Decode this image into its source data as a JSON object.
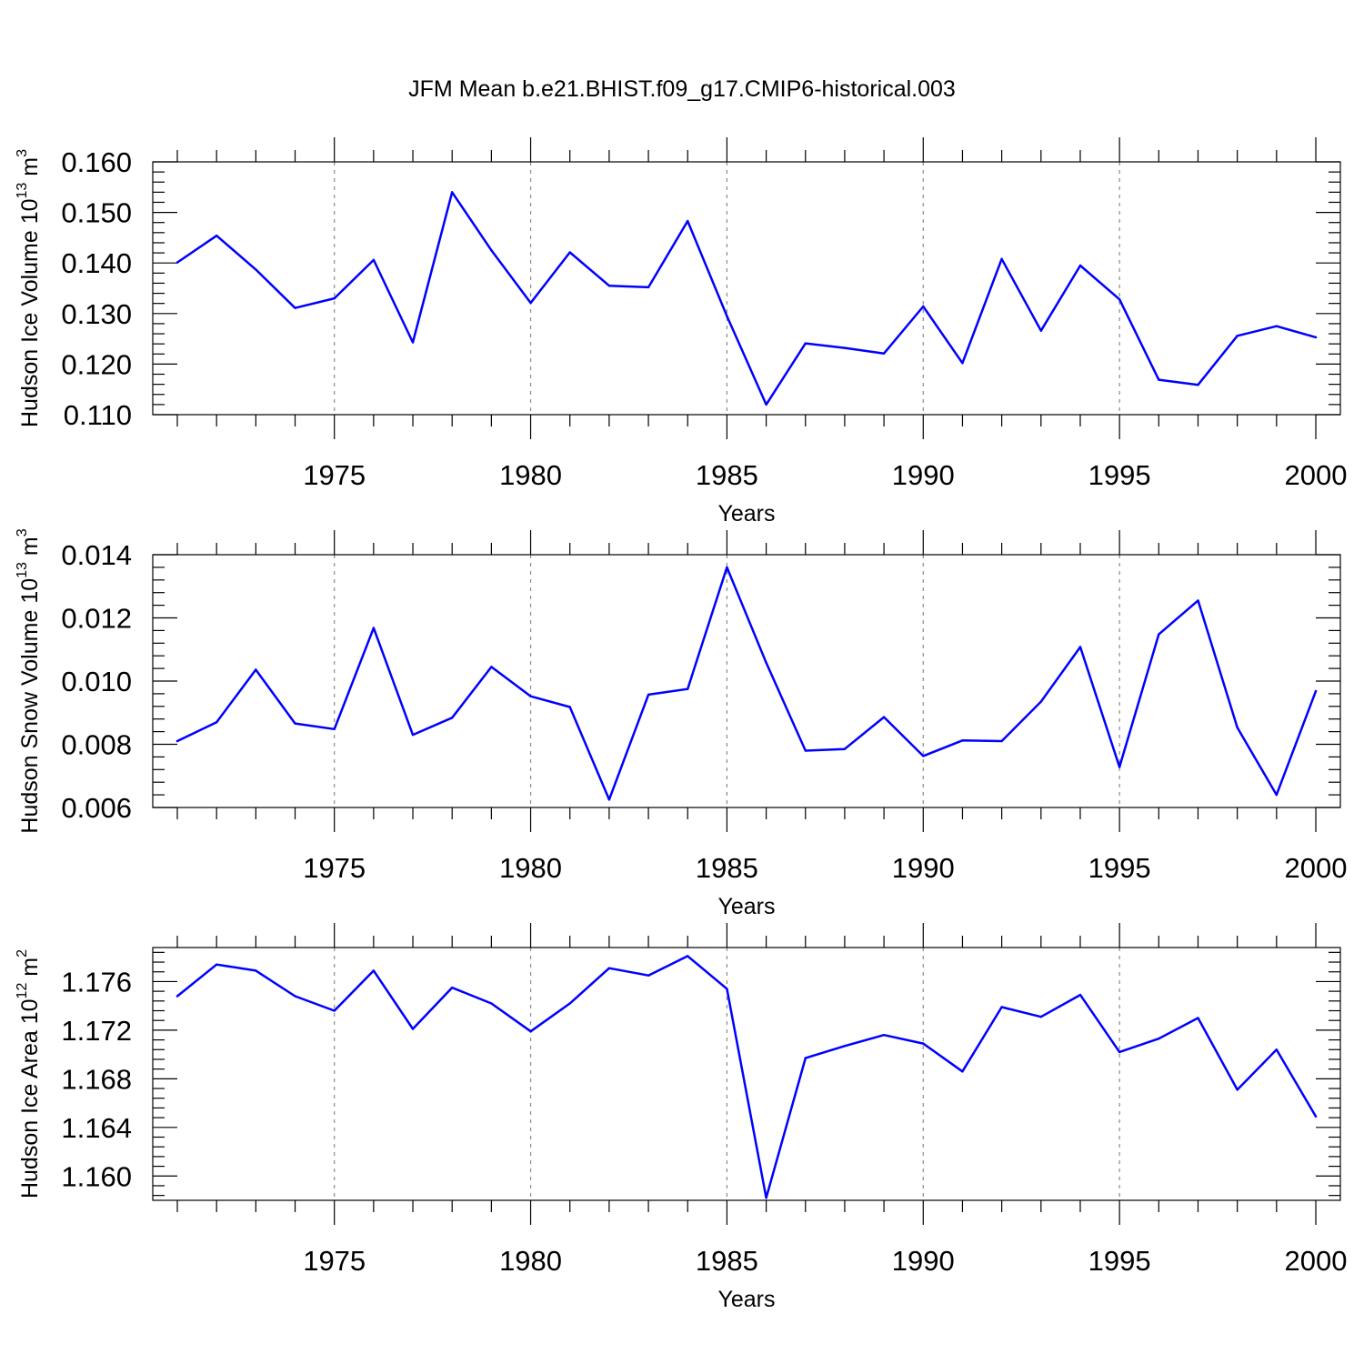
{
  "title": "JFM Mean b.e21.BHIST.f09_g17.CMIP6-historical.003",
  "line_color": "#0000ff",
  "chart_data": [
    {
      "type": "line",
      "xlabel": "Years",
      "ylabel_main": "Hudson Ice Volume 10",
      "ylabel_exp": "13",
      "ylabel_unit_main": " m",
      "ylabel_unit_exp": "3",
      "xlim": [
        1971,
        2000
      ],
      "ylim": [
        0.11,
        0.16
      ],
      "grid": "vertical dashed at major x ticks",
      "xticks": [
        1975,
        1980,
        1985,
        1990,
        1995,
        2000
      ],
      "yticks": [
        0.11,
        0.12,
        0.13,
        0.14,
        0.15,
        0.16
      ],
      "ytick_labels": [
        "0.110",
        "0.120",
        "0.130",
        "0.140",
        "0.150",
        "0.160"
      ],
      "x": [
        1971,
        1972,
        1973,
        1974,
        1975,
        1976,
        1977,
        1978,
        1979,
        1980,
        1981,
        1982,
        1983,
        1984,
        1985,
        1986,
        1987,
        1988,
        1989,
        1990,
        1991,
        1992,
        1993,
        1994,
        1995,
        1996,
        1997,
        1998,
        1999,
        2000
      ],
      "values": [
        0.1401,
        0.1454,
        0.1387,
        0.1311,
        0.133,
        0.1406,
        0.1243,
        0.154,
        0.1425,
        0.1321,
        0.1421,
        0.1355,
        0.1352,
        0.1483,
        0.1295,
        0.112,
        0.1241,
        0.1232,
        0.1221,
        0.1314,
        0.1202,
        0.1408,
        0.1266,
        0.1395,
        0.1328,
        0.1169,
        0.1159,
        0.1256,
        0.1275,
        0.1253
      ]
    },
    {
      "type": "line",
      "xlabel": "Years",
      "ylabel_main": "Hudson Snow Volume 10",
      "ylabel_exp": "13",
      "ylabel_unit_main": " m",
      "ylabel_unit_exp": "3",
      "xlim": [
        1971,
        2000
      ],
      "ylim": [
        0.006,
        0.014
      ],
      "grid": "vertical dashed at major x ticks",
      "xticks": [
        1975,
        1980,
        1985,
        1990,
        1995,
        2000
      ],
      "yticks": [
        0.006,
        0.008,
        0.01,
        0.012,
        0.014
      ],
      "ytick_labels": [
        "0.006",
        "0.008",
        "0.010",
        "0.012",
        "0.014"
      ],
      "x": [
        1971,
        1972,
        1973,
        1974,
        1975,
        1976,
        1977,
        1978,
        1979,
        1980,
        1981,
        1982,
        1983,
        1984,
        1985,
        1986,
        1987,
        1988,
        1989,
        1990,
        1991,
        1992,
        1993,
        1994,
        1995,
        1996,
        1997,
        1998,
        1999,
        2000
      ],
      "values": [
        0.0081,
        0.0087,
        0.01036,
        0.00866,
        0.00848,
        0.01168,
        0.0083,
        0.00884,
        0.01045,
        0.00952,
        0.00918,
        0.00625,
        0.00957,
        0.00975,
        0.0136,
        0.01058,
        0.0078,
        0.00785,
        0.00886,
        0.00763,
        0.00812,
        0.0081,
        0.00935,
        0.01108,
        0.00728,
        0.01148,
        0.01255,
        0.00853,
        0.0064,
        0.00968
      ]
    },
    {
      "type": "line",
      "xlabel": "Years",
      "ylabel_main": "Hudson Ice Area 10",
      "ylabel_exp": "12",
      "ylabel_unit_main": " m",
      "ylabel_unit_exp": "2",
      "xlim": [
        1971,
        2000
      ],
      "ylim": [
        1.158,
        1.1788
      ],
      "grid": "vertical dashed at major x ticks",
      "xticks": [
        1975,
        1980,
        1985,
        1990,
        1995,
        2000
      ],
      "yticks": [
        1.16,
        1.164,
        1.168,
        1.172,
        1.176
      ],
      "ytick_labels": [
        "1.160",
        "1.164",
        "1.168",
        "1.172",
        "1.176"
      ],
      "x": [
        1971,
        1972,
        1973,
        1974,
        1975,
        1976,
        1977,
        1978,
        1979,
        1980,
        1981,
        1982,
        1983,
        1984,
        1985,
        1986,
        1987,
        1988,
        1989,
        1990,
        1991,
        1992,
        1993,
        1994,
        1995,
        1996,
        1997,
        1998,
        1999,
        2000
      ],
      "values": [
        1.1748,
        1.1774,
        1.1769,
        1.1748,
        1.1736,
        1.1769,
        1.1721,
        1.1755,
        1.1742,
        1.1719,
        1.1742,
        1.1771,
        1.1765,
        1.1781,
        1.1754,
        1.1582,
        1.1697,
        1.1707,
        1.1716,
        1.1709,
        1.1686,
        1.1739,
        1.1731,
        1.1749,
        1.1702,
        1.1713,
        1.173,
        1.1671,
        1.1704,
        1.1649
      ]
    }
  ]
}
